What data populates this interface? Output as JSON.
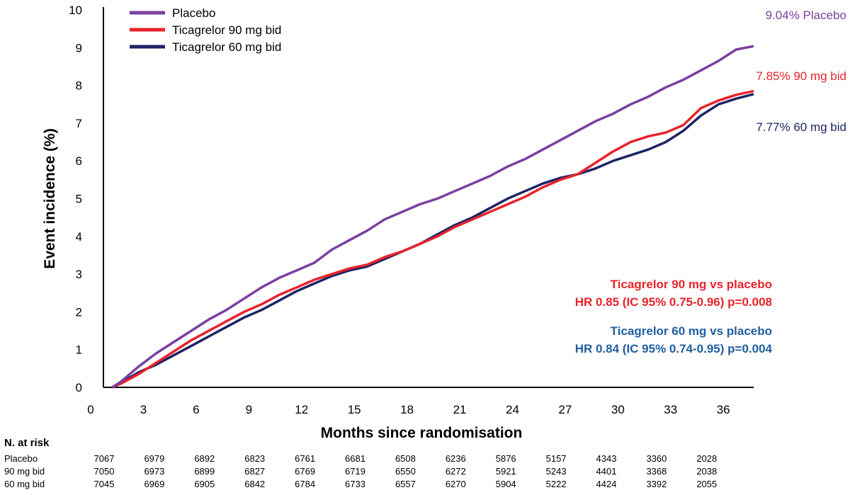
{
  "chart_data": {
    "type": "line",
    "xlabel": "Months since randomisation",
    "ylabel": "Event incidence (%)",
    "xlim": [
      0,
      37
    ],
    "ylim": [
      0,
      10
    ],
    "x_ticks": [
      "0",
      "3",
      "6",
      "9",
      "12",
      "15",
      "18",
      "21",
      "24",
      "27",
      "30",
      "33",
      "36"
    ],
    "y_ticks": [
      "0",
      "1",
      "2",
      "3",
      "4",
      "5",
      "6",
      "7",
      "8",
      "9",
      "10"
    ],
    "legend_position": "top-left",
    "series": [
      {
        "name": "Placebo",
        "color": "#7b3fa0",
        "end_label": "9.04% Placebo",
        "points": [
          [
            0.5,
            0
          ],
          [
            1,
            0.15
          ],
          [
            2,
            0.55
          ],
          [
            3,
            0.9
          ],
          [
            4,
            1.2
          ],
          [
            5,
            1.5
          ],
          [
            6,
            1.8
          ],
          [
            7,
            2.05
          ],
          [
            8,
            2.35
          ],
          [
            9,
            2.65
          ],
          [
            10,
            2.9
          ],
          [
            11,
            3.1
          ],
          [
            12,
            3.3
          ],
          [
            13,
            3.65
          ],
          [
            14,
            3.9
          ],
          [
            15,
            4.15
          ],
          [
            16,
            4.45
          ],
          [
            17,
            4.65
          ],
          [
            18,
            4.85
          ],
          [
            19,
            5.0
          ],
          [
            20,
            5.2
          ],
          [
            21,
            5.4
          ],
          [
            22,
            5.6
          ],
          [
            23,
            5.85
          ],
          [
            24,
            6.05
          ],
          [
            25,
            6.3
          ],
          [
            26,
            6.55
          ],
          [
            27,
            6.8
          ],
          [
            28,
            7.05
          ],
          [
            29,
            7.25
          ],
          [
            30,
            7.5
          ],
          [
            31,
            7.7
          ],
          [
            32,
            7.95
          ],
          [
            33,
            8.15
          ],
          [
            34,
            8.4
          ],
          [
            35,
            8.65
          ],
          [
            36,
            8.95
          ],
          [
            37,
            9.04
          ]
        ]
      },
      {
        "name": "Ticagrelor 90 mg bid",
        "color": "#e8232b",
        "end_label": "7.85%  90 mg bid",
        "points": [
          [
            0.5,
            0
          ],
          [
            1,
            0.1
          ],
          [
            2,
            0.35
          ],
          [
            3,
            0.65
          ],
          [
            4,
            0.95
          ],
          [
            5,
            1.25
          ],
          [
            6,
            1.5
          ],
          [
            7,
            1.75
          ],
          [
            8,
            2.0
          ],
          [
            9,
            2.2
          ],
          [
            10,
            2.45
          ],
          [
            11,
            2.65
          ],
          [
            12,
            2.85
          ],
          [
            13,
            3.0
          ],
          [
            14,
            3.15
          ],
          [
            15,
            3.25
          ],
          [
            16,
            3.45
          ],
          [
            17,
            3.6
          ],
          [
            18,
            3.8
          ],
          [
            19,
            4.0
          ],
          [
            20,
            4.25
          ],
          [
            21,
            4.45
          ],
          [
            22,
            4.65
          ],
          [
            23,
            4.85
          ],
          [
            24,
            5.05
          ],
          [
            25,
            5.3
          ],
          [
            26,
            5.5
          ],
          [
            27,
            5.65
          ],
          [
            28,
            5.95
          ],
          [
            29,
            6.25
          ],
          [
            30,
            6.5
          ],
          [
            31,
            6.65
          ],
          [
            32,
            6.75
          ],
          [
            33,
            6.95
          ],
          [
            34,
            7.4
          ],
          [
            35,
            7.6
          ],
          [
            36,
            7.75
          ],
          [
            37,
            7.85
          ]
        ]
      },
      {
        "name": "Ticagrelor 60 mg bid",
        "color": "#1d2464",
        "end_label": "7.77% 60 mg bid",
        "points": [
          [
            0.5,
            0
          ],
          [
            1,
            0.12
          ],
          [
            2,
            0.4
          ],
          [
            3,
            0.6
          ],
          [
            4,
            0.85
          ],
          [
            5,
            1.1
          ],
          [
            6,
            1.35
          ],
          [
            7,
            1.6
          ],
          [
            8,
            1.85
          ],
          [
            9,
            2.05
          ],
          [
            10,
            2.3
          ],
          [
            11,
            2.55
          ],
          [
            12,
            2.75
          ],
          [
            13,
            2.95
          ],
          [
            14,
            3.1
          ],
          [
            15,
            3.2
          ],
          [
            16,
            3.4
          ],
          [
            17,
            3.6
          ],
          [
            18,
            3.8
          ],
          [
            19,
            4.05
          ],
          [
            20,
            4.3
          ],
          [
            21,
            4.5
          ],
          [
            22,
            4.75
          ],
          [
            23,
            5.0
          ],
          [
            24,
            5.2
          ],
          [
            25,
            5.4
          ],
          [
            26,
            5.55
          ],
          [
            27,
            5.65
          ],
          [
            28,
            5.8
          ],
          [
            29,
            6.0
          ],
          [
            30,
            6.15
          ],
          [
            31,
            6.3
          ],
          [
            32,
            6.5
          ],
          [
            33,
            6.8
          ],
          [
            34,
            7.2
          ],
          [
            35,
            7.5
          ],
          [
            36,
            7.65
          ],
          [
            37,
            7.77
          ]
        ]
      }
    ],
    "annotations": [
      {
        "lines": [
          "Ticagrelor 90 mg vs placebo",
          "HR 0.85 (IC 95% 0.75-0.96) p=0.008"
        ],
        "color": "#e8232b"
      },
      {
        "lines": [
          "Ticagrelor 60 mg vs placebo",
          "HR 0.84 (IC 95% 0.74-0.95) p=0.004"
        ],
        "color": "#1f5fa0"
      }
    ]
  },
  "at_risk": {
    "heading": "N. at risk",
    "rows": [
      {
        "label": "Placebo",
        "values": [
          "7067",
          "6979",
          "6892",
          "6823",
          "6761",
          "6681",
          "6508",
          "6236",
          "5876",
          "5157",
          "4343",
          "3360",
          "2028"
        ]
      },
      {
        "label": "90 mg bid",
        "values": [
          "7050",
          "6973",
          "6899",
          "6827",
          "6769",
          "6719",
          "6550",
          "6272",
          "5921",
          "5243",
          "4401",
          "3368",
          "2038"
        ]
      },
      {
        "label": "60 mg bid",
        "values": [
          "7045",
          "6969",
          "6905",
          "6842",
          "6784",
          "6733",
          "6557",
          "6270",
          "5904",
          "5222",
          "4424",
          "3392",
          "2055"
        ]
      }
    ]
  }
}
